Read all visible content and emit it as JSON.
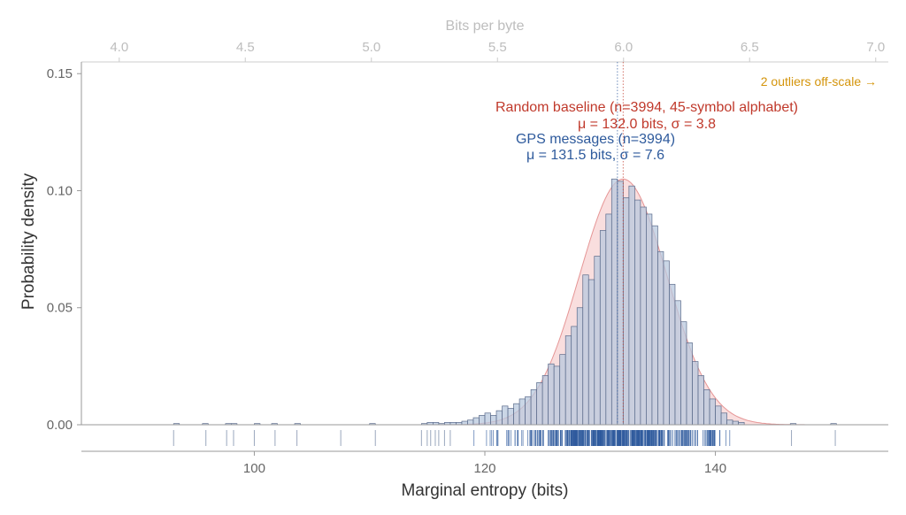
{
  "chart_data": {
    "type": "bar",
    "title": "",
    "xlabel": "Marginal entropy (bits)",
    "ylabel": "Probability density",
    "top_xlabel": "Bits per byte",
    "xlim": [
      85,
      155
    ],
    "ylim": [
      0,
      0.155
    ],
    "top_xlim": [
      3.85,
      7.05
    ],
    "x_ticks": [
      "100",
      "120",
      "140"
    ],
    "y_ticks": [
      "0.00",
      "0.05",
      "0.10",
      "0.15"
    ],
    "top_ticks": [
      "4.0",
      "4.5",
      "5.0",
      "5.5",
      "6.0",
      "6.5",
      "7.0"
    ],
    "grid": false,
    "colors": {
      "histogram_fill": "#b8c8de",
      "histogram_edge": "#5a6a8a",
      "baseline_fill": "#f4c2c2",
      "baseline_line": "#e08080",
      "rug": "#2e5a9c",
      "annotation_red": "#c0392b",
      "annotation_blue": "#2e5a9c",
      "annotation_orange": "#d4940a"
    },
    "series": [
      {
        "name": "GPS messages (n=3994)",
        "kind": "histogram",
        "bin_width": 0.5,
        "bins": [
          [
            93.0,
            0.0005
          ],
          [
            95.5,
            0.0005
          ],
          [
            97.5,
            0.0005
          ],
          [
            98.0,
            0.0005
          ],
          [
            100.0,
            0.0005
          ],
          [
            101.5,
            0.0005
          ],
          [
            103.5,
            0.0005
          ],
          [
            110.0,
            0.0005
          ],
          [
            114.5,
            0.0005
          ],
          [
            115.0,
            0.001
          ],
          [
            115.5,
            0.001
          ],
          [
            116.0,
            0.0005
          ],
          [
            116.5,
            0.001
          ],
          [
            117.0,
            0.001
          ],
          [
            117.5,
            0.001
          ],
          [
            118.0,
            0.0015
          ],
          [
            118.5,
            0.002
          ],
          [
            119.0,
            0.003
          ],
          [
            119.5,
            0.004
          ],
          [
            120.0,
            0.005
          ],
          [
            120.5,
            0.004
          ],
          [
            121.0,
            0.006
          ],
          [
            121.5,
            0.008
          ],
          [
            122.0,
            0.007
          ],
          [
            122.5,
            0.009
          ],
          [
            123.0,
            0.011
          ],
          [
            123.5,
            0.012
          ],
          [
            124.0,
            0.015
          ],
          [
            124.5,
            0.018
          ],
          [
            125.0,
            0.021
          ],
          [
            125.5,
            0.026
          ],
          [
            126.0,
            0.025
          ],
          [
            126.5,
            0.03
          ],
          [
            127.0,
            0.038
          ],
          [
            127.5,
            0.042
          ],
          [
            128.0,
            0.05
          ],
          [
            128.5,
            0.064
          ],
          [
            129.0,
            0.062
          ],
          [
            129.5,
            0.072
          ],
          [
            130.0,
            0.083
          ],
          [
            130.5,
            0.09
          ],
          [
            131.0,
            0.105
          ],
          [
            131.5,
            0.104
          ],
          [
            132.0,
            0.097
          ],
          [
            132.5,
            0.102
          ],
          [
            133.0,
            0.096
          ],
          [
            133.5,
            0.093
          ],
          [
            134.0,
            0.09
          ],
          [
            134.5,
            0.085
          ],
          [
            135.0,
            0.074
          ],
          [
            135.5,
            0.07
          ],
          [
            136.0,
            0.06
          ],
          [
            136.5,
            0.053
          ],
          [
            137.0,
            0.044
          ],
          [
            137.5,
            0.035
          ],
          [
            138.0,
            0.027
          ],
          [
            138.5,
            0.021
          ],
          [
            139.0,
            0.015
          ],
          [
            139.5,
            0.011
          ],
          [
            140.0,
            0.008
          ],
          [
            140.5,
            0.005
          ],
          [
            141.0,
            0.002
          ],
          [
            141.5,
            0.0015
          ],
          [
            142.0,
            0.001
          ],
          [
            146.5,
            0.0005
          ],
          [
            150.0,
            0.0005
          ]
        ]
      },
      {
        "name": "Random baseline (n=3994, 45-symbol alphabet)",
        "kind": "density",
        "mean": 132.0,
        "sd": 3.8
      }
    ],
    "rug_outliers": [
      93.0,
      95.8,
      97.6,
      98.2,
      100.0,
      101.8,
      103.7,
      107.5,
      110.5,
      114.5,
      115.0,
      115.3,
      115.7,
      116.0,
      116.5,
      117.0,
      146.6,
      150.4
    ],
    "annotations": {
      "baseline_title": "Random baseline (n=3994, 45-symbol alphabet)",
      "baseline_stats": "μ = 132.0 bits, σ = 3.8",
      "gps_title": "GPS messages (n=3994)",
      "gps_stats": "μ = 131.5 bits, σ = 7.6",
      "outliers_note": "2 outliers off-scale →"
    },
    "mean_lines": [
      131.5,
      132.0
    ]
  }
}
